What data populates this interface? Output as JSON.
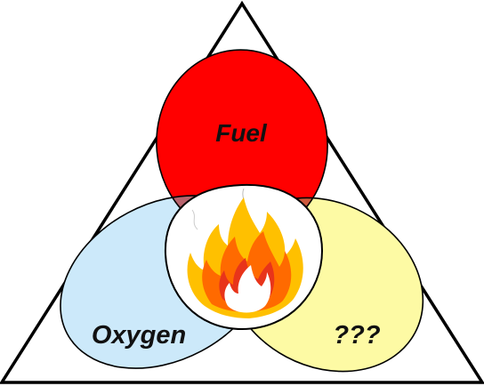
{
  "diagram": {
    "labels": {
      "top": "Fuel",
      "bottom_left": "Oxygen",
      "bottom_right": "???"
    },
    "colors": {
      "fuel": "#ff0000",
      "oxygen": "#cce9fa",
      "unknown": "#fdfaa4",
      "outline": "#000000",
      "flame_outer": "#ffc000",
      "flame_mid": "#ff6a00",
      "flame_inner": "#ffffff"
    },
    "icons": [
      "fire-icon"
    ]
  }
}
